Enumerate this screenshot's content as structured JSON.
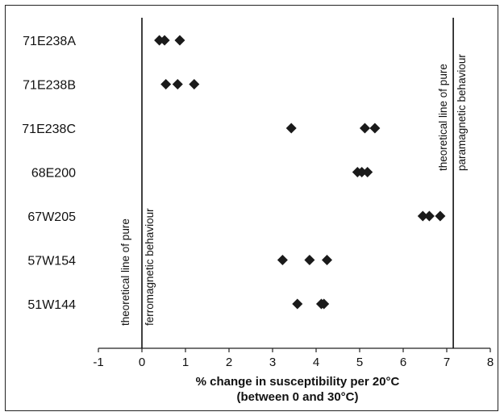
{
  "chart_data": {
    "type": "scatter",
    "categories": [
      "71E238A",
      "71E238B",
      "71E238C",
      "68E200",
      "67W205",
      "57W154",
      "51W144"
    ],
    "points": [
      {
        "category": "71E238A",
        "values": [
          0.4,
          0.52,
          0.87
        ]
      },
      {
        "category": "71E238B",
        "values": [
          0.55,
          0.82,
          1.2
        ]
      },
      {
        "category": "71E238C",
        "values": [
          3.43,
          5.12,
          5.35
        ]
      },
      {
        "category": "68E200",
        "values": [
          4.95,
          5.05,
          5.18
        ]
      },
      {
        "category": "67W205",
        "values": [
          6.45,
          6.6,
          6.85
        ]
      },
      {
        "category": "57W154",
        "values": [
          3.23,
          3.85,
          4.25
        ]
      },
      {
        "category": "51W144",
        "values": [
          3.57,
          4.12,
          4.18
        ]
      }
    ],
    "xlim": [
      -1,
      8
    ],
    "xticks": [
      -1,
      0,
      1,
      2,
      3,
      4,
      5,
      6,
      7,
      8
    ],
    "xlabel_line1": "% change in susceptibility per 20°C",
    "xlabel_line2": "(between 0 and 30°C)",
    "reference_lines": [
      {
        "x": 0,
        "label_line1": "theoretical line of pure",
        "label_line2": "ferromagnetic behaviour"
      },
      {
        "x": 7.15,
        "label_line1": "theoretical line of pure",
        "label_line2": "paramagnetic behaviour"
      }
    ],
    "marker": "diamond",
    "marker_color": "#1a1a1a",
    "grid": false,
    "legend": "none"
  }
}
